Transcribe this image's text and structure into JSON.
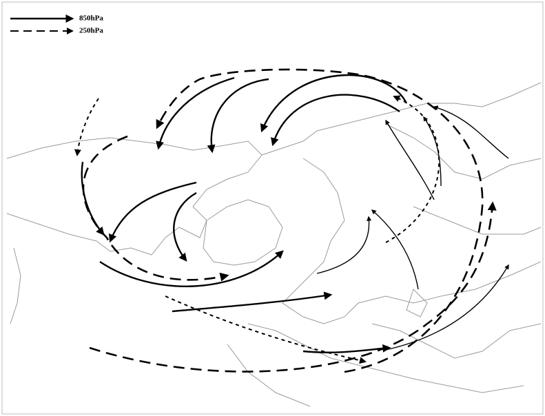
{
  "legend": {
    "items": [
      {
        "label": "850hPa"
      },
      {
        "label": "250hPa"
      }
    ]
  }
}
